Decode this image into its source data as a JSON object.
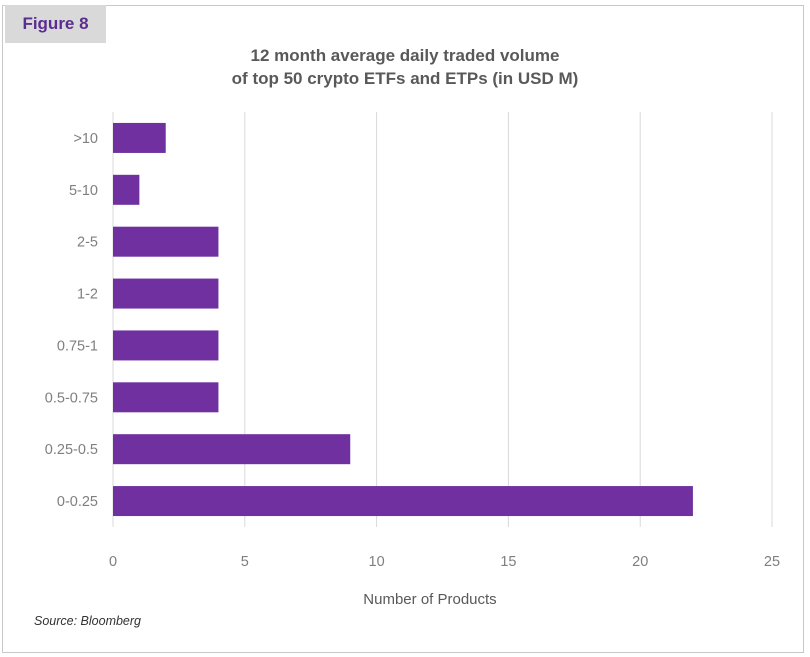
{
  "figure_label": "Figure 8",
  "source": "Source:  Bloomberg",
  "colors": {
    "bar": "#7030a0",
    "grid": "#d9d9d9",
    "tick_text": "#7f7f7f"
  },
  "chart_data": {
    "type": "bar",
    "orientation": "horizontal",
    "title_lines": [
      "12 month average daily traded volume",
      "of top 50 crypto ETFs and ETPs (in USD M)"
    ],
    "categories": [
      ">10",
      "5-10",
      "2-5",
      "1-2",
      "0.75-1",
      "0.5-0.75",
      "0.25-0.5",
      "0-0.25"
    ],
    "values": [
      2,
      1,
      4,
      4,
      4,
      4,
      9,
      22
    ],
    "xlabel": "Number of Products",
    "ylabel": "",
    "xlim": [
      0,
      25
    ],
    "xticks": [
      0,
      5,
      10,
      15,
      20,
      25
    ],
    "grid": true,
    "legend": "none"
  }
}
